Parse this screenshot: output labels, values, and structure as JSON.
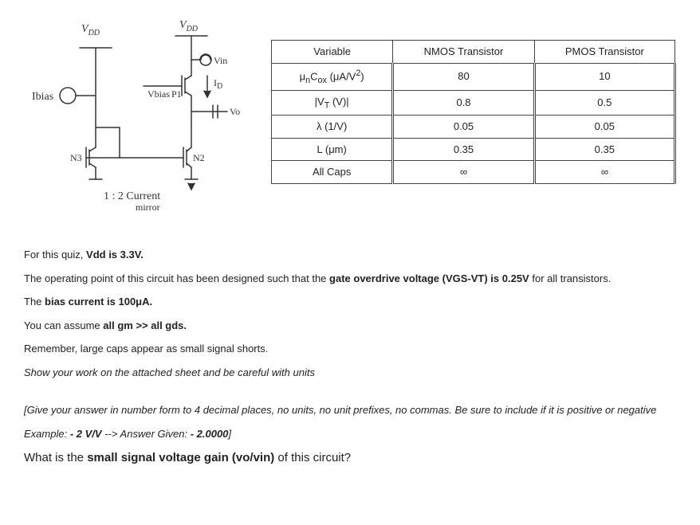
{
  "schematic": {
    "vdd_left": "V",
    "vdd_left_sub": "DD",
    "vdd_right": "V",
    "vdd_right_sub": "DD",
    "ibias": "Ibias",
    "vbias": "Vbias",
    "p1": "P1",
    "vin": "Vin",
    "id": "I",
    "id_sub": "D",
    "vo": "Vo",
    "n3": "N3",
    "n2": "N2",
    "mirror": "1 : 2  Current",
    "mirror2": "mirror"
  },
  "table": {
    "headers": {
      "var": "Variable",
      "nmos": "NMOS Transistor",
      "pmos": "PMOS Transistor"
    },
    "rows": [
      {
        "var_html": "μ<sub>n</sub>C<sub>ox</sub> (μA/V<sup>2</sup>)",
        "nmos": "80",
        "pmos": "10"
      },
      {
        "var_html": "|V<sub>T</sub> (V)|",
        "nmos": "0.8",
        "pmos": "0.5"
      },
      {
        "var_html": "λ (1/V)",
        "nmos": "0.05",
        "pmos": "0.05"
      },
      {
        "var_html": "L (μm)",
        "nmos": "0.35",
        "pmos": "0.35"
      },
      {
        "var_html": "All Caps",
        "nmos": "∞",
        "pmos": "∞"
      }
    ]
  },
  "text": {
    "p1a": "For this quiz, ",
    "p1b": "Vdd is 3.3V.",
    "p2a": "The operating point of this circuit has been designed such that the ",
    "p2b": "gate overdrive voltage (VGS-VT) is 0.25V",
    "p2c": " for all transistors.",
    "p3a": "The ",
    "p3b": "bias current is 100μA.",
    "p4a": "You can assume ",
    "p4b": "all gm >> all gds.",
    "p5": "Remember, large caps appear as small signal shorts.",
    "p6": "Show your work on the attached sheet and be careful with units",
    "p7": "[Give your answer in number form to 4 decimal places, no units, no unit prefixes, no commas. Be sure to include if it is positive or negative",
    "p8a": "Example: ",
    "p8b": "- 2 V/V",
    "p8c": " --> Answer Given: ",
    "p8d": "- 2.0000",
    "p8e": "]",
    "qa": "What is the ",
    "qb": "small signal voltage gain (vo/vin)",
    "qc": " of this circuit?"
  }
}
